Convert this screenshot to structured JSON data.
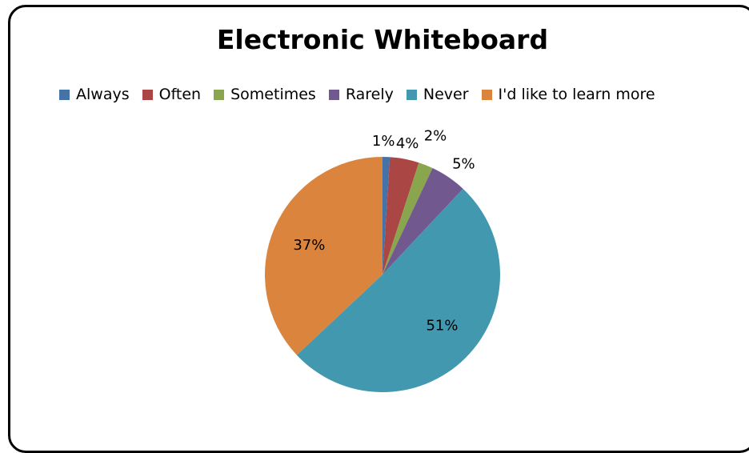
{
  "chart_data": {
    "type": "pie",
    "title": "Electronic Whiteboard",
    "legend_position": "top",
    "categories": [
      "Always",
      "Often",
      "Sometimes",
      "Rarely",
      "Never",
      "I'd like to learn more"
    ],
    "values": [
      1,
      4,
      2,
      5,
      51,
      37
    ],
    "labels": [
      "1%",
      "4%",
      "2%",
      "5%",
      "51%",
      "37%"
    ],
    "colors": [
      "#4572A7",
      "#AA4643",
      "#89A54E",
      "#71588F",
      "#4198AF",
      "#DB843D"
    ]
  }
}
